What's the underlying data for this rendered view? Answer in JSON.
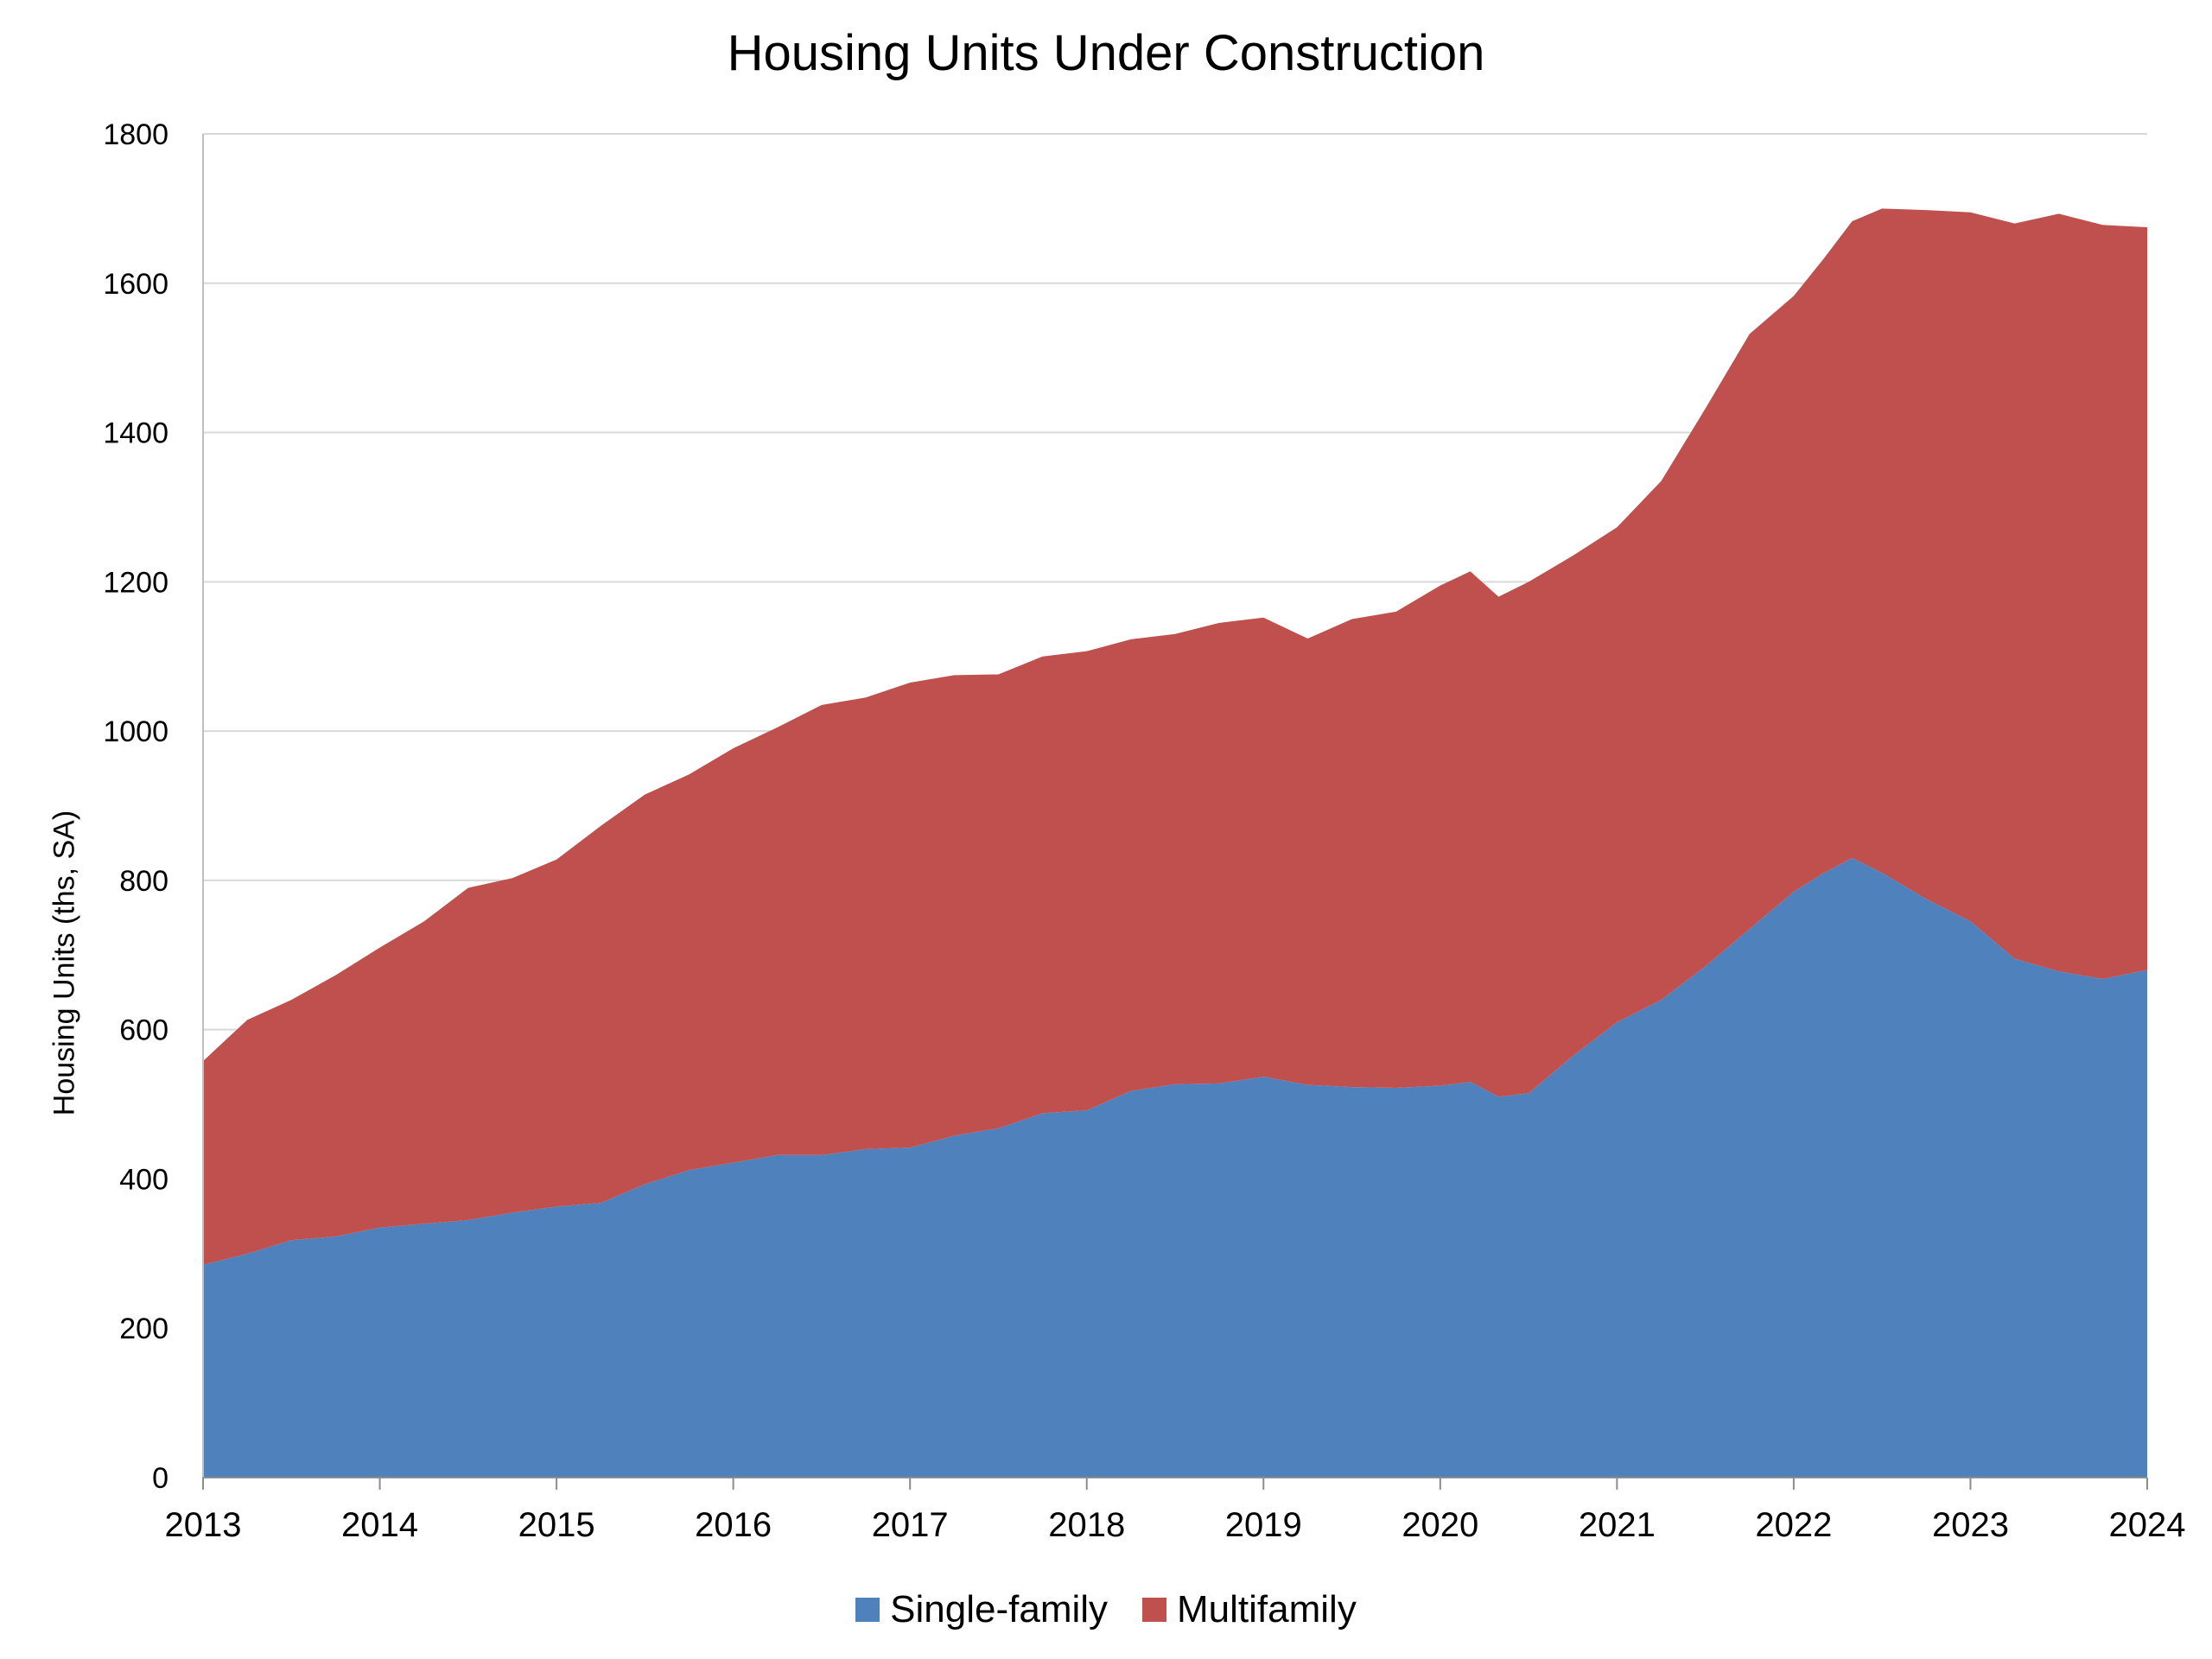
{
  "chart_data": {
    "type": "area",
    "stacked": true,
    "title": "Housing Units Under Construction",
    "ylabel": "Housing Units (ths, SA)",
    "xlabel": "",
    "xlim": [
      2013,
      2024
    ],
    "ylim": [
      0,
      1800
    ],
    "yticks": [
      0,
      200,
      400,
      600,
      800,
      1000,
      1200,
      1400,
      1600,
      1800
    ],
    "xticks": [
      "2013",
      "2014",
      "2015",
      "2016",
      "2017",
      "2018",
      "2019",
      "2020",
      "2021",
      "2022",
      "2023",
      "2024"
    ],
    "grid": "horizontal",
    "legend": "bottom-center",
    "x": [
      2013.0,
      2013.25,
      2013.5,
      2013.75,
      2014.0,
      2014.25,
      2014.5,
      2014.75,
      2015.0,
      2015.25,
      2015.5,
      2015.75,
      2016.0,
      2016.25,
      2016.5,
      2016.75,
      2017.0,
      2017.25,
      2017.5,
      2017.75,
      2018.0,
      2018.25,
      2018.5,
      2018.75,
      2019.0,
      2019.25,
      2019.5,
      2019.75,
      2020.0,
      2020.17,
      2020.33,
      2020.5,
      2020.75,
      2021.0,
      2021.25,
      2021.5,
      2021.75,
      2022.0,
      2022.17,
      2022.33,
      2022.5,
      2022.75,
      2023.0,
      2023.25,
      2023.5,
      2023.75,
      2024.0
    ],
    "series": [
      {
        "name": "Single-family",
        "color": "#4f81bd",
        "values": [
          285,
          300,
          318,
          323,
          335,
          340,
          345,
          355,
          363,
          368,
          393,
          412,
          422,
          432,
          432,
          440,
          442,
          458,
          468,
          488,
          492,
          518,
          527,
          528,
          537,
          526,
          523,
          522,
          525,
          530,
          510,
          515,
          565,
          610,
          640,
          685,
          735,
          785,
          810,
          830,
          810,
          775,
          745,
          695,
          678,
          668,
          680
        ]
      },
      {
        "name": "Multifamily",
        "color": "#c0504d",
        "values": [
          273,
          313,
          322,
          350,
          375,
          405,
          445,
          448,
          465,
          505,
          522,
          530,
          555,
          573,
          603,
          605,
          623,
          617,
          608,
          612,
          615,
          605,
          603,
          617,
          615,
          598,
          627,
          638,
          670,
          684,
          670,
          685,
          670,
          663,
          695,
          747,
          797,
          798,
          823,
          853,
          890,
          923,
          950,
          985,
          1015,
          1010,
          995
        ]
      }
    ]
  }
}
